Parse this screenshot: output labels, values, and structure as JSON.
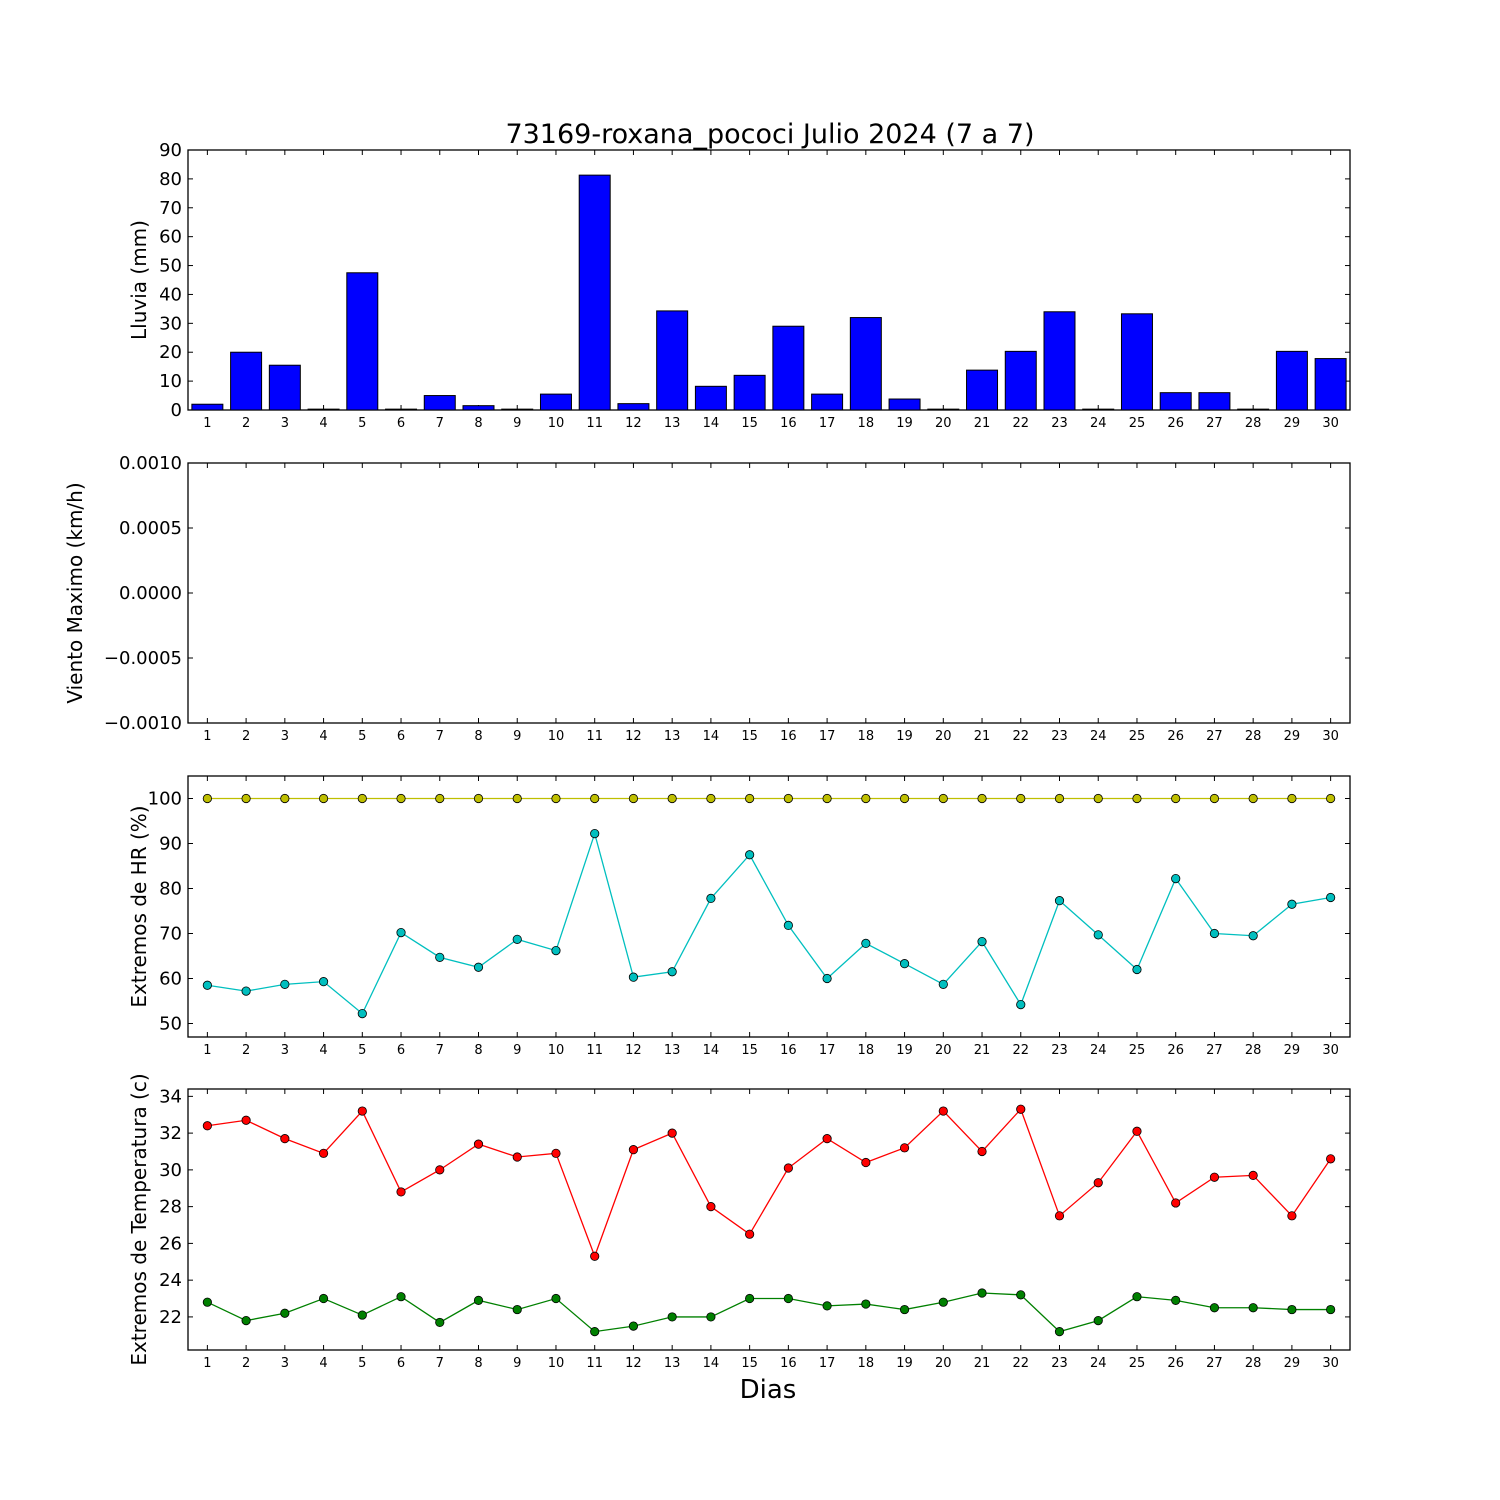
{
  "chart_data": [
    {
      "type": "bar",
      "title": "73169-roxana_pococi Julio 2024  (7 a 7)",
      "ylabel": "Lluvia (mm)",
      "xlabel": "",
      "ylim": [
        0,
        90
      ],
      "yticks": [
        "0",
        "10",
        "20",
        "30",
        "40",
        "50",
        "60",
        "70",
        "80",
        "90"
      ],
      "categories": [
        "1",
        "2",
        "3",
        "4",
        "5",
        "6",
        "7",
        "8",
        "9",
        "10",
        "11",
        "12",
        "13",
        "14",
        "15",
        "16",
        "17",
        "18",
        "19",
        "20",
        "21",
        "22",
        "23",
        "24",
        "25",
        "26",
        "27",
        "28",
        "29",
        "30"
      ],
      "values": [
        2,
        20,
        15.5,
        0.3,
        47.5,
        0.3,
        5,
        1.5,
        0.3,
        5.5,
        81.3,
        2.2,
        34.3,
        8.2,
        12,
        29,
        5.5,
        32,
        3.8,
        0.3,
        13.8,
        20.3,
        34,
        0.3,
        33.3,
        6,
        6,
        0.3,
        20.3,
        17.8
      ],
      "color": "#0000ff",
      "grid": false
    },
    {
      "type": "line",
      "title": "",
      "ylabel": "Viento Maximo (km/h)",
      "ylim": [
        -0.001,
        0.001
      ],
      "yticks": [
        "−0.0010",
        "−0.0005",
        "0.0000",
        "0.0005",
        "0.0010"
      ],
      "categories": [
        "1",
        "2",
        "3",
        "4",
        "5",
        "6",
        "7",
        "8",
        "9",
        "10",
        "11",
        "12",
        "13",
        "14",
        "15",
        "16",
        "17",
        "18",
        "19",
        "20",
        "21",
        "22",
        "23",
        "24",
        "25",
        "26",
        "27",
        "28",
        "29",
        "30"
      ],
      "series": [],
      "grid": false
    },
    {
      "type": "line",
      "title": "",
      "ylabel": "Extremos de HR (%)",
      "ylim": [
        47,
        105
      ],
      "yticks": [
        "50",
        "60",
        "70",
        "80",
        "90",
        "100"
      ],
      "categories": [
        "1",
        "2",
        "3",
        "4",
        "5",
        "6",
        "7",
        "8",
        "9",
        "10",
        "11",
        "12",
        "13",
        "14",
        "15",
        "16",
        "17",
        "18",
        "19",
        "20",
        "21",
        "22",
        "23",
        "24",
        "25",
        "26",
        "27",
        "28",
        "29",
        "30"
      ],
      "series": [
        {
          "color": "#bfbf00",
          "values": [
            100,
            100,
            100,
            100,
            100,
            100,
            100,
            100,
            100,
            100,
            100,
            100,
            100,
            100,
            100,
            100,
            100,
            100,
            100,
            100,
            100,
            100,
            100,
            100,
            100,
            100,
            100,
            100,
            100,
            100
          ]
        },
        {
          "color": "#00bfbf",
          "values": [
            58.5,
            57.2,
            58.7,
            59.3,
            52.2,
            70.2,
            64.7,
            62.5,
            68.7,
            66.2,
            92.2,
            60.3,
            61.5,
            77.8,
            87.5,
            71.8,
            60,
            67.8,
            63.3,
            58.7,
            68.2,
            54.2,
            77.3,
            69.7,
            62,
            82.2,
            70,
            69.5,
            76.5,
            78
          ]
        }
      ],
      "grid": false
    },
    {
      "type": "line",
      "title": "",
      "ylabel": "Extremos de Temperatura (c)",
      "xlabel": "Dias",
      "ylim": [
        20.2,
        34.4
      ],
      "yticks": [
        "22",
        "24",
        "26",
        "28",
        "30",
        "32",
        "34"
      ],
      "categories": [
        "1",
        "2",
        "3",
        "4",
        "5",
        "6",
        "7",
        "8",
        "9",
        "10",
        "11",
        "12",
        "13",
        "14",
        "15",
        "16",
        "17",
        "18",
        "19",
        "20",
        "21",
        "22",
        "23",
        "24",
        "25",
        "26",
        "27",
        "28",
        "29",
        "30"
      ],
      "series": [
        {
          "color": "#ff0000",
          "values": [
            32.4,
            32.7,
            31.7,
            30.9,
            33.2,
            28.8,
            30,
            31.4,
            30.7,
            30.9,
            25.3,
            31.1,
            32,
            28,
            26.5,
            30.1,
            31.7,
            30.4,
            31.2,
            33.2,
            31,
            33.3,
            27.5,
            29.3,
            32.1,
            28.2,
            29.6,
            29.7,
            27.5,
            30.6
          ]
        },
        {
          "color": "#008000",
          "values": [
            22.8,
            21.8,
            22.2,
            23,
            22.1,
            23.1,
            21.7,
            22.9,
            22.4,
            23,
            21.2,
            21.5,
            22,
            22,
            23,
            23,
            22.6,
            22.7,
            22.4,
            22.8,
            23.3,
            23.2,
            21.2,
            21.8,
            23.1,
            22.9,
            22.5,
            22.5,
            22.4,
            22.4
          ]
        }
      ],
      "grid": false
    }
  ]
}
